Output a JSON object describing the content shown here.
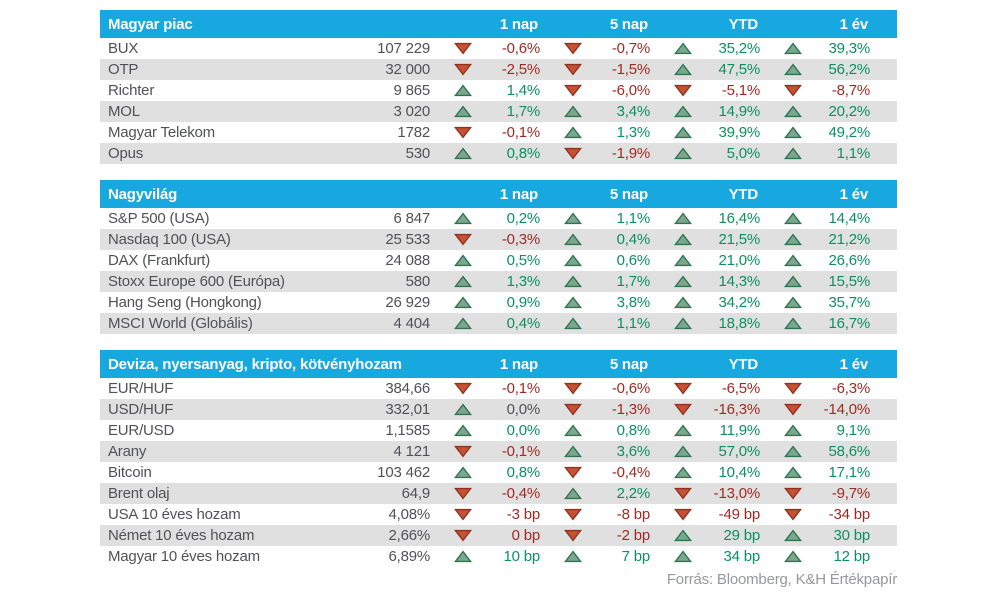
{
  "colors": {
    "header-bg": "#17a8e0",
    "header-text": "#ffffff",
    "row-alt": "#e0e0e0",
    "text": "#515256",
    "positive": "#0b9161",
    "negative": "#9f2a23",
    "neutral": "#515256",
    "tri-up-fill": "#7da78d",
    "tri-up-stroke": "#2e7354",
    "tri-down-fill": "#c65133",
    "tri-down-stroke": "#8f3220",
    "footer-text": "#97989a"
  },
  "columns": [
    "1 nap",
    "5 nap",
    "YTD",
    "1 év"
  ],
  "footer": "Forrás: Bloomberg, K&H Értékpapír",
  "tables": [
    {
      "title": "Magyar piac",
      "rows": [
        {
          "name": "BUX",
          "value": "107 229",
          "changes": [
            {
              "dir": "down",
              "tone": "neg",
              "text": "-0,6%"
            },
            {
              "dir": "down",
              "tone": "neg",
              "text": "-0,7%"
            },
            {
              "dir": "up",
              "tone": "pos",
              "text": "35,2%"
            },
            {
              "dir": "up",
              "tone": "pos",
              "text": "39,3%"
            }
          ]
        },
        {
          "name": "OTP",
          "value": "32 000",
          "changes": [
            {
              "dir": "down",
              "tone": "neg",
              "text": "-2,5%"
            },
            {
              "dir": "down",
              "tone": "neg",
              "text": "-1,5%"
            },
            {
              "dir": "up",
              "tone": "pos",
              "text": "47,5%"
            },
            {
              "dir": "up",
              "tone": "pos",
              "text": "56,2%"
            }
          ]
        },
        {
          "name": "Richter",
          "value": "9 865",
          "changes": [
            {
              "dir": "up",
              "tone": "pos",
              "text": "1,4%"
            },
            {
              "dir": "down",
              "tone": "neg",
              "text": "-6,0%"
            },
            {
              "dir": "down",
              "tone": "neg",
              "text": "-5,1%"
            },
            {
              "dir": "down",
              "tone": "neg",
              "text": "-8,7%"
            }
          ]
        },
        {
          "name": "MOL",
          "value": "3 020",
          "changes": [
            {
              "dir": "up",
              "tone": "pos",
              "text": "1,7%"
            },
            {
              "dir": "up",
              "tone": "pos",
              "text": "3,4%"
            },
            {
              "dir": "up",
              "tone": "pos",
              "text": "14,9%"
            },
            {
              "dir": "up",
              "tone": "pos",
              "text": "20,2%"
            }
          ]
        },
        {
          "name": "Magyar Telekom",
          "value": "1782",
          "changes": [
            {
              "dir": "down",
              "tone": "neg",
              "text": "-0,1%"
            },
            {
              "dir": "up",
              "tone": "pos",
              "text": "1,3%"
            },
            {
              "dir": "up",
              "tone": "pos",
              "text": "39,9%"
            },
            {
              "dir": "up",
              "tone": "pos",
              "text": "49,2%"
            }
          ]
        },
        {
          "name": "Opus",
          "value": "530",
          "changes": [
            {
              "dir": "up",
              "tone": "pos",
              "text": "0,8%"
            },
            {
              "dir": "down",
              "tone": "neg",
              "text": "-1,9%"
            },
            {
              "dir": "up",
              "tone": "pos",
              "text": "5,0%"
            },
            {
              "dir": "up",
              "tone": "pos",
              "text": "1,1%"
            }
          ]
        }
      ]
    },
    {
      "title": "Nagyvilág",
      "rows": [
        {
          "name": "S&P 500 (USA)",
          "value": "6 847",
          "changes": [
            {
              "dir": "up",
              "tone": "pos",
              "text": "0,2%"
            },
            {
              "dir": "up",
              "tone": "pos",
              "text": "1,1%"
            },
            {
              "dir": "up",
              "tone": "pos",
              "text": "16,4%"
            },
            {
              "dir": "up",
              "tone": "pos",
              "text": "14,4%"
            }
          ]
        },
        {
          "name": "Nasdaq 100 (USA)",
          "value": "25 533",
          "changes": [
            {
              "dir": "down",
              "tone": "neg",
              "text": "-0,3%"
            },
            {
              "dir": "up",
              "tone": "pos",
              "text": "0,4%"
            },
            {
              "dir": "up",
              "tone": "pos",
              "text": "21,5%"
            },
            {
              "dir": "up",
              "tone": "pos",
              "text": "21,2%"
            }
          ]
        },
        {
          "name": "DAX (Frankfurt)",
          "value": "24 088",
          "changes": [
            {
              "dir": "up",
              "tone": "pos",
              "text": "0,5%"
            },
            {
              "dir": "up",
              "tone": "pos",
              "text": "0,6%"
            },
            {
              "dir": "up",
              "tone": "pos",
              "text": "21,0%"
            },
            {
              "dir": "up",
              "tone": "pos",
              "text": "26,6%"
            }
          ]
        },
        {
          "name": "Stoxx Europe 600 (Európa)",
          "value": "580",
          "changes": [
            {
              "dir": "up",
              "tone": "pos",
              "text": "1,3%"
            },
            {
              "dir": "up",
              "tone": "pos",
              "text": "1,7%"
            },
            {
              "dir": "up",
              "tone": "pos",
              "text": "14,3%"
            },
            {
              "dir": "up",
              "tone": "pos",
              "text": "15,5%"
            }
          ]
        },
        {
          "name": "Hang Seng (Hongkong)",
          "value": "26 929",
          "changes": [
            {
              "dir": "up",
              "tone": "pos",
              "text": "0,9%"
            },
            {
              "dir": "up",
              "tone": "pos",
              "text": "3,8%"
            },
            {
              "dir": "up",
              "tone": "pos",
              "text": "34,2%"
            },
            {
              "dir": "up",
              "tone": "pos",
              "text": "35,7%"
            }
          ]
        },
        {
          "name": "MSCI World (Globális)",
          "value": "4 404",
          "changes": [
            {
              "dir": "up",
              "tone": "pos",
              "text": "0,4%"
            },
            {
              "dir": "up",
              "tone": "pos",
              "text": "1,1%"
            },
            {
              "dir": "up",
              "tone": "pos",
              "text": "18,8%"
            },
            {
              "dir": "up",
              "tone": "pos",
              "text": "16,7%"
            }
          ]
        }
      ]
    },
    {
      "title": "Deviza, nyersanyag, kripto, kötvényhozam",
      "rows": [
        {
          "name": "EUR/HUF",
          "value": "384,66",
          "changes": [
            {
              "dir": "down",
              "tone": "neg",
              "text": "-0,1%"
            },
            {
              "dir": "down",
              "tone": "neg",
              "text": "-0,6%"
            },
            {
              "dir": "down",
              "tone": "neg",
              "text": "-6,5%"
            },
            {
              "dir": "down",
              "tone": "neg",
              "text": "-6,3%"
            }
          ]
        },
        {
          "name": "USD/HUF",
          "value": "332,01",
          "changes": [
            {
              "dir": "up",
              "tone": "neu",
              "text": "0,0%"
            },
            {
              "dir": "down",
              "tone": "neg",
              "text": "-1,3%"
            },
            {
              "dir": "down",
              "tone": "neg",
              "text": "-16,3%"
            },
            {
              "dir": "down",
              "tone": "neg",
              "text": "-14,0%"
            }
          ]
        },
        {
          "name": "EUR/USD",
          "value": "1,1585",
          "changes": [
            {
              "dir": "up",
              "tone": "pos",
              "text": "0,0%"
            },
            {
              "dir": "up",
              "tone": "pos",
              "text": "0,8%"
            },
            {
              "dir": "up",
              "tone": "pos",
              "text": "11,9%"
            },
            {
              "dir": "up",
              "tone": "pos",
              "text": "9,1%"
            }
          ]
        },
        {
          "name": "Arany",
          "value": "4 121",
          "changes": [
            {
              "dir": "down",
              "tone": "neg",
              "text": "-0,1%"
            },
            {
              "dir": "up",
              "tone": "pos",
              "text": "3,6%"
            },
            {
              "dir": "up",
              "tone": "pos",
              "text": "57,0%"
            },
            {
              "dir": "up",
              "tone": "pos",
              "text": "58,6%"
            }
          ]
        },
        {
          "name": "Bitcoin",
          "value": "103 462",
          "changes": [
            {
              "dir": "up",
              "tone": "pos",
              "text": "0,8%"
            },
            {
              "dir": "down",
              "tone": "neg",
              "text": "-0,4%"
            },
            {
              "dir": "up",
              "tone": "pos",
              "text": "10,4%"
            },
            {
              "dir": "up",
              "tone": "pos",
              "text": "17,1%"
            }
          ]
        },
        {
          "name": "Brent olaj",
          "value": "64,9",
          "changes": [
            {
              "dir": "down",
              "tone": "neg",
              "text": "-0,4%"
            },
            {
              "dir": "up",
              "tone": "pos",
              "text": "2,2%"
            },
            {
              "dir": "down",
              "tone": "neg",
              "text": "-13,0%"
            },
            {
              "dir": "down",
              "tone": "neg",
              "text": "-9,7%"
            }
          ]
        },
        {
          "name": "USA 10 éves hozam",
          "value": "4,08%",
          "changes": [
            {
              "dir": "down",
              "tone": "neg",
              "text": "-3 bp"
            },
            {
              "dir": "down",
              "tone": "neg",
              "text": "-8 bp"
            },
            {
              "dir": "down",
              "tone": "neg",
              "text": "-49 bp"
            },
            {
              "dir": "down",
              "tone": "neg",
              "text": "-34 bp"
            }
          ]
        },
        {
          "name": "Német 10 éves hozam",
          "value": "2,66%",
          "changes": [
            {
              "dir": "down",
              "tone": "neg",
              "text": "0 bp"
            },
            {
              "dir": "down",
              "tone": "neg",
              "text": "-2 bp"
            },
            {
              "dir": "up",
              "tone": "pos",
              "text": "29 bp"
            },
            {
              "dir": "up",
              "tone": "pos",
              "text": "30 bp"
            }
          ]
        },
        {
          "name": "Magyar 10 éves hozam",
          "value": "6,89%",
          "changes": [
            {
              "dir": "up",
              "tone": "pos",
              "text": "10 bp"
            },
            {
              "dir": "up",
              "tone": "pos",
              "text": "7 bp"
            },
            {
              "dir": "up",
              "tone": "pos",
              "text": "34 bp"
            },
            {
              "dir": "up",
              "tone": "pos",
              "text": "12 bp"
            }
          ]
        }
      ]
    }
  ]
}
